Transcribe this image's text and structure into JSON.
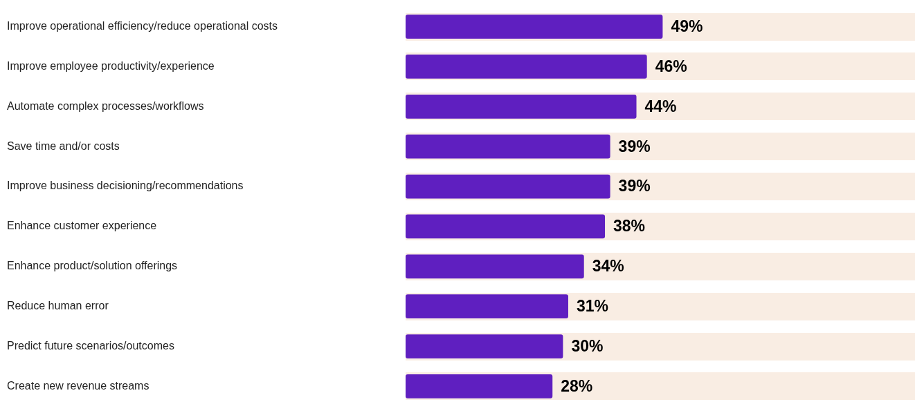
{
  "chart_data": {
    "type": "bar",
    "orientation": "horizontal",
    "categories": [
      "Improve operational efficiency/reduce operational costs",
      "Improve employee productivity/experience",
      "Automate complex processes/workflows",
      "Save time and/or costs",
      "Improve business decisioning/recommendations",
      "Enhance customer experience",
      "Enhance product/solution offerings",
      "Reduce human error",
      "Predict future scenarios/outcomes",
      "Create new revenue streams"
    ],
    "values": [
      49,
      46,
      44,
      39,
      39,
      38,
      34,
      31,
      30,
      28
    ],
    "color": "#5f1fc0",
    "value_labels": [
      "49%",
      "46%",
      "44%",
      "39%",
      "39%",
      "38%",
      "34%",
      "31%",
      "30%",
      "28%"
    ],
    "tick_labels": "y",
    "grid": false,
    "legend": false
  }
}
